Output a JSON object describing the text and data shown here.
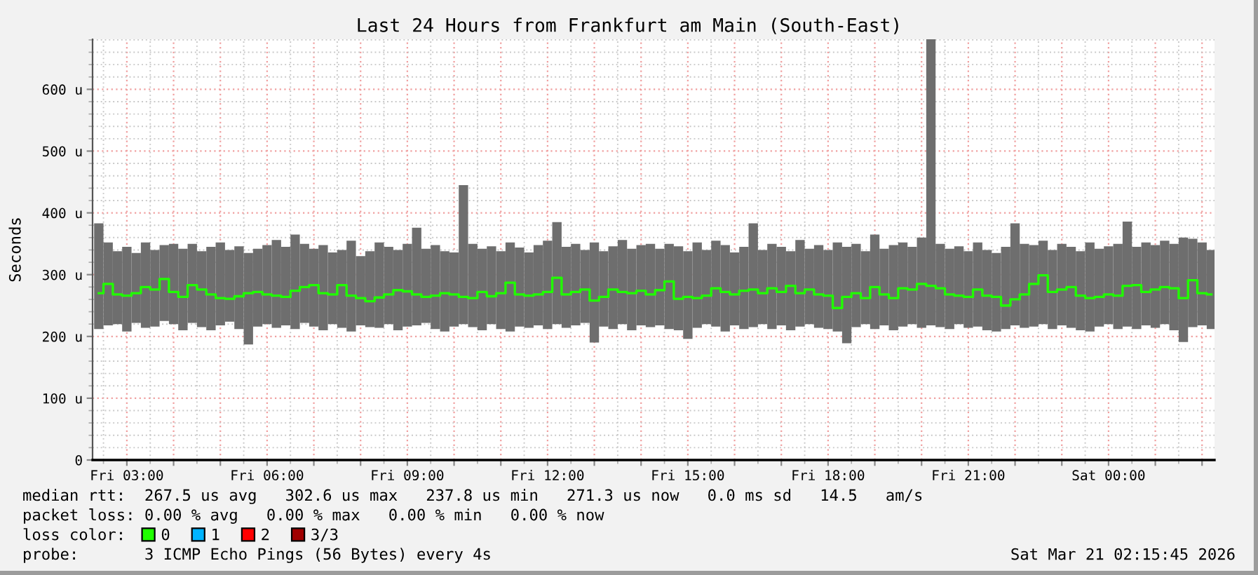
{
  "chart_data": {
    "type": "bar",
    "title": "Last 24 Hours from Frankfurt am Main (South-East)",
    "ylabel": "Seconds",
    "legend_title": "loss color:",
    "x": [
      "2026-03-20T02:24",
      "2026-03-20T02:36",
      "2026-03-20T02:48",
      "2026-03-20T03:00",
      "2026-03-20T03:12",
      "2026-03-20T03:24",
      "2026-03-20T03:36",
      "2026-03-20T03:48",
      "2026-03-20T04:00",
      "2026-03-20T04:12",
      "2026-03-20T04:24",
      "2026-03-20T04:36",
      "2026-03-20T04:48",
      "2026-03-20T05:00",
      "2026-03-20T05:12",
      "2026-03-20T05:24",
      "2026-03-20T05:36",
      "2026-03-20T05:48",
      "2026-03-20T06:00",
      "2026-03-20T06:12",
      "2026-03-20T06:24",
      "2026-03-20T06:36",
      "2026-03-20T06:48",
      "2026-03-20T07:00",
      "2026-03-20T07:12",
      "2026-03-20T07:24",
      "2026-03-20T07:36",
      "2026-03-20T07:48",
      "2026-03-20T08:00",
      "2026-03-20T08:12",
      "2026-03-20T08:24",
      "2026-03-20T08:36",
      "2026-03-20T08:48",
      "2026-03-20T09:00",
      "2026-03-20T09:12",
      "2026-03-20T09:24",
      "2026-03-20T09:36",
      "2026-03-20T09:48",
      "2026-03-20T10:00",
      "2026-03-20T10:12",
      "2026-03-20T10:24",
      "2026-03-20T10:36",
      "2026-03-20T10:48",
      "2026-03-20T11:00",
      "2026-03-20T11:12",
      "2026-03-20T11:24",
      "2026-03-20T11:36",
      "2026-03-20T11:48",
      "2026-03-20T12:00",
      "2026-03-20T12:12",
      "2026-03-20T12:24",
      "2026-03-20T12:36",
      "2026-03-20T12:48",
      "2026-03-20T13:00",
      "2026-03-20T13:12",
      "2026-03-20T13:24",
      "2026-03-20T13:36",
      "2026-03-20T13:48",
      "2026-03-20T14:00",
      "2026-03-20T14:12",
      "2026-03-20T14:24",
      "2026-03-20T14:36",
      "2026-03-20T14:48",
      "2026-03-20T15:00",
      "2026-03-20T15:12",
      "2026-03-20T15:24",
      "2026-03-20T15:36",
      "2026-03-20T15:48",
      "2026-03-20T16:00",
      "2026-03-20T16:12",
      "2026-03-20T16:24",
      "2026-03-20T16:36",
      "2026-03-20T16:48",
      "2026-03-20T17:00",
      "2026-03-20T17:12",
      "2026-03-20T17:24",
      "2026-03-20T17:36",
      "2026-03-20T17:48",
      "2026-03-20T18:00",
      "2026-03-20T18:12",
      "2026-03-20T18:24",
      "2026-03-20T18:36",
      "2026-03-20T18:48",
      "2026-03-20T19:00",
      "2026-03-20T19:12",
      "2026-03-20T19:24",
      "2026-03-20T19:36",
      "2026-03-20T19:48",
      "2026-03-20T20:00",
      "2026-03-20T20:12",
      "2026-03-20T20:24",
      "2026-03-20T20:36",
      "2026-03-20T20:48",
      "2026-03-20T21:00",
      "2026-03-20T21:12",
      "2026-03-20T21:24",
      "2026-03-20T21:36",
      "2026-03-20T21:48",
      "2026-03-20T22:00",
      "2026-03-20T22:12",
      "2026-03-20T22:24",
      "2026-03-20T22:36",
      "2026-03-20T22:48",
      "2026-03-20T23:00",
      "2026-03-20T23:12",
      "2026-03-20T23:24",
      "2026-03-20T23:36",
      "2026-03-20T23:48",
      "2026-03-21T00:00",
      "2026-03-21T00:12",
      "2026-03-21T00:24",
      "2026-03-21T00:36",
      "2026-03-21T00:48",
      "2026-03-21T01:00",
      "2026-03-21T01:12",
      "2026-03-21T01:24",
      "2026-03-21T01:36",
      "2026-03-21T01:48",
      "2026-03-21T02:00",
      "2026-03-21T02:12"
    ],
    "series": [
      {
        "color": "#6e6e6e",
        "base": [
          212,
          218,
          220,
          208,
          222,
          214,
          216,
          225,
          220,
          210,
          222,
          215,
          210,
          218,
          224,
          212,
          187,
          216,
          220,
          214,
          218,
          212,
          222,
          216,
          210,
          220,
          214,
          208,
          218,
          215,
          214,
          220,
          210,
          216,
          218,
          222,
          212,
          208,
          216,
          220,
          215,
          210,
          220,
          212,
          208,
          216,
          214,
          218,
          212,
          220,
          214,
          218,
          222,
          190,
          216,
          212,
          220,
          210,
          218,
          215,
          218,
          212,
          210,
          196,
          214,
          220,
          216,
          208,
          218,
          212,
          215,
          220,
          212,
          218,
          210,
          216,
          220,
          214,
          212,
          208,
          189,
          215,
          220,
          212,
          218,
          210,
          216,
          220,
          214,
          218,
          215,
          212,
          220,
          214,
          216,
          210,
          208,
          212,
          218,
          214,
          216,
          220,
          212,
          218,
          214,
          210,
          208,
          216,
          220,
          212,
          216,
          212,
          218,
          214,
          220,
          210,
          191,
          215,
          218,
          212
        ],
        "values": [
          171,
          134,
          118,
          137,
          113,
          138,
          124,
          123,
          130,
          132,
          128,
          123,
          135,
          134,
          116,
          134,
          148,
          126,
          128,
          142,
          127,
          153,
          128,
          126,
          138,
          116,
          126,
          147,
          112,
          123,
          138,
          125,
          130,
          134,
          158,
          120,
          136,
          130,
          120,
          225,
          135,
          132,
          126,
          126,
          144,
          128,
          122,
          130,
          143,
          165,
          131,
          132,
          118,
          162,
          122,
          134,
          136,
          132,
          130,
          135,
          124,
          138,
          136,
          142,
          138,
          120,
          139,
          140,
          118,
          133,
          168,
          120,
          138,
          127,
          128,
          140,
          122,
          134,
          128,
          144,
          156,
          135,
          118,
          153,
          124,
          138,
          136,
          125,
          146,
          463,
          135,
          130,
          126,
          124,
          136,
          130,
          127,
          133,
          165,
          136,
          132,
          135,
          128,
          132,
          131,
          128,
          144,
          126,
          126,
          138,
          170,
          133,
          134,
          134,
          135,
          140,
          169,
          143,
          134,
          128
        ]
      },
      {
        "name": "0",
        "type": "step",
        "color": "#20ff00",
        "values": [
          270,
          285,
          268,
          266,
          270,
          280,
          276,
          293,
          272,
          264,
          283,
          276,
          268,
          262,
          261,
          265,
          270,
          272,
          268,
          266,
          264,
          274,
          280,
          283,
          270,
          268,
          283,
          266,
          262,
          257,
          263,
          268,
          275,
          273,
          268,
          264,
          266,
          270,
          268,
          264,
          262,
          272,
          265,
          270,
          287,
          268,
          266,
          268,
          272,
          295,
          268,
          272,
          276,
          258,
          264,
          276,
          272,
          270,
          274,
          268,
          275,
          289,
          261,
          264,
          262,
          266,
          278,
          272,
          268,
          274,
          276,
          270,
          278,
          272,
          282,
          270,
          276,
          268,
          266,
          246,
          264,
          270,
          262,
          280,
          268,
          262,
          278,
          276,
          285,
          282,
          278,
          268,
          266,
          264,
          276,
          266,
          264,
          250,
          260,
          268,
          285,
          299,
          272,
          276,
          280,
          266,
          262,
          264,
          268,
          266,
          282,
          283,
          272,
          276,
          280,
          278,
          262,
          291,
          270,
          268
        ]
      },
      {
        "name": "1",
        "type": "step",
        "color": "#00b4ff",
        "values": [
          null,
          null,
          null,
          null,
          null,
          null,
          null,
          null,
          null,
          null,
          null,
          null,
          null,
          null,
          null,
          null,
          null,
          null,
          null,
          null,
          null,
          null,
          null,
          null,
          null,
          null,
          null,
          null,
          null,
          null,
          null,
          null,
          null,
          null,
          null,
          null,
          null,
          null,
          null,
          null,
          null,
          null,
          null,
          null,
          null,
          null,
          null,
          null,
          null,
          null,
          null,
          null,
          null,
          null,
          null,
          null,
          null,
          null,
          null,
          null,
          null,
          null,
          null,
          null,
          null,
          null,
          null,
          null,
          null,
          null,
          null,
          null,
          null,
          null,
          null,
          null,
          null,
          null,
          null,
          null,
          null,
          null,
          null,
          null,
          null,
          null,
          null,
          null,
          null,
          null,
          null,
          null,
          null,
          null,
          null,
          null,
          null,
          null,
          null,
          null,
          null,
          null,
          null,
          null,
          null,
          null,
          null,
          null,
          null,
          null,
          null,
          null,
          null,
          null,
          null,
          null,
          null,
          null,
          null,
          null
        ]
      },
      {
        "name": "2",
        "type": "step",
        "color": "#ff0000",
        "values": [
          null,
          null,
          null,
          null,
          null,
          null,
          null,
          null,
          null,
          null,
          null,
          null,
          null,
          null,
          null,
          null,
          null,
          null,
          null,
          null,
          null,
          null,
          null,
          null,
          null,
          null,
          null,
          null,
          null,
          null,
          null,
          null,
          null,
          null,
          null,
          null,
          null,
          null,
          null,
          null,
          null,
          null,
          null,
          null,
          null,
          null,
          null,
          null,
          null,
          null,
          null,
          null,
          null,
          null,
          null,
          null,
          null,
          null,
          null,
          null,
          null,
          null,
          null,
          null,
          null,
          null,
          null,
          null,
          null,
          null,
          null,
          null,
          null,
          null,
          null,
          null,
          null,
          null,
          null,
          null,
          null,
          null,
          null,
          null,
          null,
          null,
          null,
          null,
          null,
          null,
          null,
          null,
          null,
          null,
          null,
          null,
          null,
          null,
          null,
          null,
          null,
          null,
          null,
          null,
          null,
          null,
          null,
          null,
          null,
          null,
          null,
          null,
          null,
          null,
          null,
          null,
          null,
          null,
          null,
          null
        ]
      },
      {
        "name": "3/3",
        "type": "step",
        "color": "#a00000",
        "values": [
          null,
          null,
          null,
          null,
          null,
          null,
          null,
          null,
          null,
          null,
          null,
          null,
          null,
          null,
          null,
          null,
          null,
          null,
          null,
          null,
          null,
          null,
          null,
          null,
          null,
          null,
          null,
          null,
          null,
          null,
          null,
          null,
          null,
          null,
          null,
          null,
          null,
          null,
          null,
          null,
          null,
          null,
          null,
          null,
          null,
          null,
          null,
          null,
          null,
          null,
          null,
          null,
          null,
          null,
          null,
          null,
          null,
          null,
          null,
          null,
          null,
          null,
          null,
          null,
          null,
          null,
          null,
          null,
          null,
          null,
          null,
          null,
          null,
          null,
          null,
          null,
          null,
          null,
          null,
          null,
          null,
          null,
          null,
          null,
          null,
          null,
          null,
          null,
          null,
          null,
          null,
          null,
          null,
          null,
          null,
          null,
          null,
          null,
          null,
          null,
          null,
          null,
          null,
          null,
          null,
          null,
          null,
          null,
          null,
          null,
          null,
          null,
          null,
          null,
          null,
          null,
          null,
          null,
          null,
          null
        ]
      }
    ],
    "xlim": [
      "2026-03-20T02:16",
      "2026-03-21T02:16"
    ],
    "xticks": [
      {
        "value": "2026-03-20T03:00",
        "label": "Fri 03:00"
      },
      {
        "value": "2026-03-20T04:00",
        "label": null
      },
      {
        "value": "2026-03-20T05:00",
        "label": null
      },
      {
        "value": "2026-03-20T06:00",
        "label": "Fri 06:00"
      },
      {
        "value": "2026-03-20T07:00",
        "label": null
      },
      {
        "value": "2026-03-20T08:00",
        "label": null
      },
      {
        "value": "2026-03-20T09:00",
        "label": "Fri 09:00"
      },
      {
        "value": "2026-03-20T10:00",
        "label": null
      },
      {
        "value": "2026-03-20T11:00",
        "label": null
      },
      {
        "value": "2026-03-20T12:00",
        "label": "Fri 12:00"
      },
      {
        "value": "2026-03-20T13:00",
        "label": null
      },
      {
        "value": "2026-03-20T14:00",
        "label": null
      },
      {
        "value": "2026-03-20T15:00",
        "label": "Fri 15:00"
      },
      {
        "value": "2026-03-20T16:00",
        "label": null
      },
      {
        "value": "2026-03-20T17:00",
        "label": null
      },
      {
        "value": "2026-03-20T18:00",
        "label": "Fri 18:00"
      },
      {
        "value": "2026-03-20T19:00",
        "label": null
      },
      {
        "value": "2026-03-20T20:00",
        "label": null
      },
      {
        "value": "2026-03-20T21:00",
        "label": "Fri 21:00"
      },
      {
        "value": "2026-03-20T22:00",
        "label": null
      },
      {
        "value": "2026-03-20T23:00",
        "label": null
      },
      {
        "value": "2026-03-21T00:00",
        "label": "Sat 00:00"
      },
      {
        "value": "2026-03-21T01:00",
        "label": null
      },
      {
        "value": "2026-03-21T02:00",
        "label": null
      }
    ],
    "ylim": [
      0,
      681
    ],
    "yticks": [
      0,
      {
        "value": 100,
        "label": "100 u"
      },
      {
        "value": 200,
        "label": "200 u"
      },
      {
        "value": 300,
        "label": "300 u"
      },
      {
        "value": 400,
        "label": "400 u"
      },
      {
        "value": 500,
        "label": "500 u"
      },
      {
        "value": 600,
        "label": "600 u"
      }
    ],
    "grid": true,
    "legend": "bottom",
    "annotations": [
      "median rtt:  267.5 us avg   302.6 us max   237.8 us min   271.3 us now   0.0 ms sd   14.5   am/s",
      "packet loss: 0.00 % avg   0.00 % max   0.00 % min   0.00 % now",
      "probe:       3 ICMP Echo Pings (56 Bytes) every 4s",
      "Sat Mar 21 02:15:45 2026"
    ]
  }
}
